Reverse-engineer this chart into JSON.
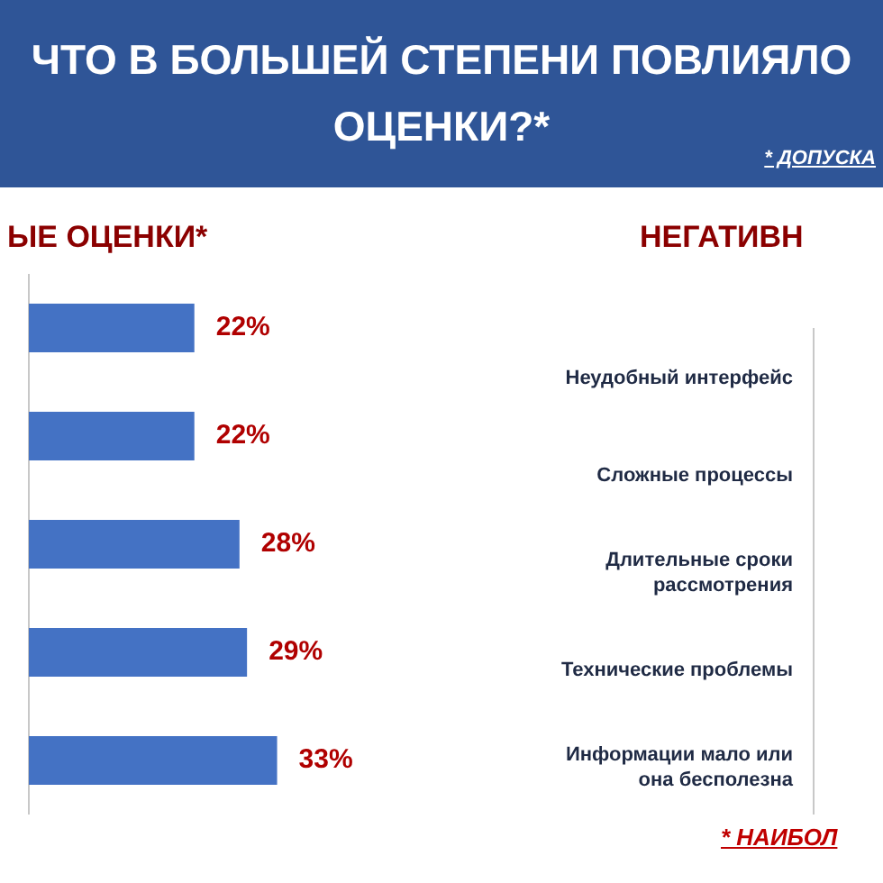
{
  "chart_data": [
    {
      "type": "other",
      "title": "ЧТО В БОЛЬШЕЙ СТЕПЕНИ ПОВЛИЯЛО",
      "subtitle": "ОЦЕНКИ?*",
      "annotations": [
        "* ДОПУСКА"
      ]
    },
    {
      "type": "bar",
      "orientation": "horizontal",
      "title": "ЫЕ ОЦЕНКИ*",
      "categories": [
        null,
        null,
        null,
        null,
        null
      ],
      "values": [
        22,
        22,
        28,
        29,
        33
      ],
      "value_labels": [
        "22%",
        "22%",
        "28%",
        "29%",
        "33%"
      ],
      "color": "#4472c4",
      "tick_labels": false
    },
    {
      "type": "other",
      "title": "НЕГАТИВН",
      "annotations": [
        "Неудобный интерфейс",
        "Сложные процессы",
        "Длительные сроки рассмотрения",
        "Технические проблемы",
        "Информации мало или она бесполезна",
        "* НАИБОЛ"
      ]
    }
  ]
}
